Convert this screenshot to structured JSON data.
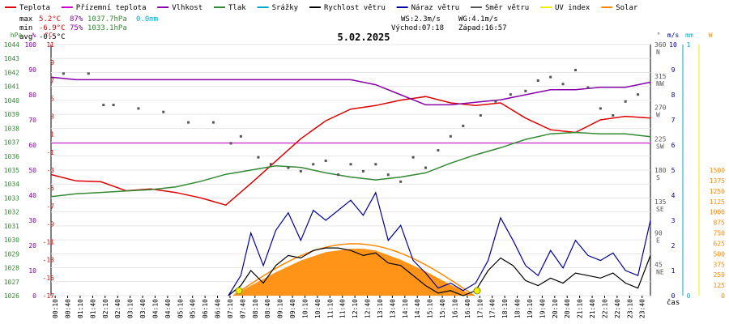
{
  "legend": [
    {
      "label": "Teplota",
      "color": "#dd0000"
    },
    {
      "label": "Přízemní teplota",
      "color": "#cc00cc"
    },
    {
      "label": "Vlhkost",
      "color": "#8800aa"
    },
    {
      "label": "Tlak",
      "color": "#338833"
    },
    {
      "label": "Srážky",
      "color": "#00aacc"
    },
    {
      "label": "Rychlost větru",
      "color": "#000000"
    },
    {
      "label": "Náraz větru",
      "color": "#000099"
    },
    {
      "label": "Směr větru",
      "color": "#555555"
    },
    {
      "label": "UV index",
      "color": "#eeee00"
    },
    {
      "label": "Solar",
      "color": "#ff8800"
    }
  ],
  "stats": {
    "max_label": "max",
    "max_temp": "5.2°C",
    "max_hum": "87%",
    "max_press": "1037.7hPa",
    "max_rain": "0.0mm",
    "min_label": "min",
    "min_temp": "-6.9°C",
    "min_hum": "75%",
    "min_press": "1033.1hPa",
    "avg_label": "avg",
    "avg_temp": "-0.5°C",
    "ws": "WS:2.3m/s",
    "wg": "WG:4.1m/s",
    "sunrise": "Východ:07:18",
    "sunset": "Západ:16:57"
  },
  "chart_data": {
    "type": "line",
    "title": "5.02.2025",
    "xlabel": "čas",
    "x_ticks": [
      "00:10",
      "00:40",
      "01:10",
      "01:40",
      "02:10",
      "02:40",
      "03:10",
      "03:40",
      "04:10",
      "04:40",
      "05:10",
      "05:40",
      "06:10",
      "06:40",
      "07:10",
      "07:40",
      "08:10",
      "08:40",
      "09:10",
      "09:40",
      "10:10",
      "10:40",
      "11:10",
      "11:40",
      "12:10",
      "12:40",
      "13:10",
      "13:40",
      "14:10",
      "14:40",
      "15:10",
      "15:40",
      "16:10",
      "16:40",
      "17:10",
      "17:40",
      "18:10",
      "18:40",
      "19:10",
      "19:40",
      "20:10",
      "20:40",
      "21:10",
      "21:40",
      "22:10",
      "22:40",
      "23:10",
      "23:40"
    ],
    "axes": {
      "pressure": {
        "unit": "hPa",
        "ylim": [
          1026,
          1044
        ],
        "ticks": [
          1044,
          1043,
          1042,
          1041,
          1040,
          1039,
          1038,
          1037,
          1036,
          1035,
          1034,
          1033,
          1032,
          1031,
          1030,
          1029,
          1028,
          1027,
          1026
        ]
      },
      "humidity": {
        "unit": "%",
        "ylim": [
          0,
          100
        ],
        "ticks": [
          100,
          90,
          80,
          70,
          60,
          50,
          40,
          30,
          20,
          10,
          0
        ]
      },
      "temperature": {
        "unit": "°C",
        "ylim": [
          -17,
          11
        ],
        "ticks": [
          11,
          9,
          7,
          5,
          3,
          1,
          -1,
          -3,
          -5,
          -7,
          -9,
          -11,
          -13,
          -15,
          -17
        ]
      },
      "direction": {
        "ticks": [
          "360\nN",
          "315\nNW",
          "270\nW",
          "225\nSW",
          "180\nS",
          "135\nSE",
          "90\nE",
          "45\nNE",
          ""
        ]
      },
      "rain": {
        "unit": "mm",
        "ticks": [
          "1",
          "0"
        ]
      },
      "wind": {
        "unit": "m/s",
        "ylim": [
          0,
          10
        ],
        "ticks": [
          "10",
          "9",
          "8",
          "7",
          "6",
          "5",
          "4",
          "3",
          "2",
          "1",
          "0"
        ]
      },
      "solar": {
        "unit": "W",
        "ticks": [
          "1500",
          "1375",
          "1250",
          "1125",
          "1000",
          "875",
          "750",
          "625",
          "500",
          "375",
          "250",
          "125",
          "0"
        ]
      }
    },
    "series": [
      {
        "name": "Teplota",
        "unit": "°C",
        "color": "#dd0000",
        "x": [
          0,
          1,
          2,
          3,
          4,
          5,
          6,
          7,
          8,
          9,
          10,
          11,
          12,
          13,
          14,
          15,
          16,
          17,
          18,
          19,
          20,
          21,
          22,
          23,
          24
        ],
        "y": [
          -3.5,
          -4.2,
          -4.3,
          -5.3,
          -5.1,
          -5.5,
          -6.1,
          -6.9,
          -4.5,
          -2,
          0.5,
          2.5,
          3.8,
          4.2,
          4.8,
          5.2,
          4.5,
          4.2,
          4.5,
          2.8,
          1.5,
          1.2,
          2.6,
          3,
          2.8
        ]
      },
      {
        "name": "Vlhkost",
        "unit": "%",
        "color": "#8800aa",
        "x": [
          0,
          1,
          2,
          3,
          4,
          5,
          6,
          7,
          8,
          9,
          10,
          11,
          12,
          13,
          14,
          15,
          16,
          17,
          18,
          19,
          20,
          21,
          22,
          23,
          24
        ],
        "y": [
          87,
          86,
          86,
          86,
          86,
          86,
          86,
          86,
          86,
          86,
          86,
          86,
          86,
          84,
          80,
          76,
          76,
          77,
          78,
          80,
          82,
          82,
          83,
          83,
          85
        ]
      },
      {
        "name": "Tlak",
        "unit": "hPa",
        "color": "#338833",
        "x": [
          0,
          1,
          2,
          3,
          4,
          5,
          6,
          7,
          8,
          9,
          10,
          11,
          12,
          13,
          14,
          15,
          16,
          17,
          18,
          19,
          20,
          21,
          22,
          23,
          24
        ],
        "y": [
          1033.1,
          1033.3,
          1033.4,
          1033.5,
          1033.6,
          1033.8,
          1034.2,
          1034.7,
          1035,
          1035.3,
          1035.2,
          1034.8,
          1034.5,
          1034.3,
          1034.5,
          1034.8,
          1035.5,
          1036.1,
          1036.6,
          1037.2,
          1037.6,
          1037.7,
          1037.6,
          1037.6,
          1037.4
        ]
      },
      {
        "name": "Směr větru",
        "unit": "°",
        "color": "#555555",
        "style": "dots",
        "x": [
          0.5,
          1.5,
          2.1,
          2.5,
          3.5,
          4.5,
          5.5,
          6.5,
          7.2,
          7.6,
          8.3,
          8.8,
          9.5,
          10,
          10.5,
          11,
          11.5,
          12,
          12.5,
          13,
          13.5,
          14,
          14.5,
          15,
          15.5,
          16,
          16.5,
          17.2,
          17.8,
          18.4,
          19,
          19.5,
          20,
          20.5,
          21,
          21.5,
          22,
          22.5,
          23,
          23.5
        ],
        "y": [
          330,
          330,
          285,
          285,
          280,
          275,
          260,
          260,
          230,
          240,
          210,
          200,
          195,
          190,
          200,
          205,
          185,
          200,
          190,
          200,
          185,
          175,
          210,
          195,
          220,
          240,
          255,
          270,
          290,
          300,
          305,
          320,
          325,
          315,
          335,
          310,
          280,
          270,
          290,
          300
        ]
      },
      {
        "name": "Rychlost větru",
        "unit": "m/s",
        "color": "#000000",
        "x": [
          7.1,
          7.6,
          8,
          8.5,
          9,
          9.5,
          10,
          10.5,
          11,
          11.5,
          12,
          12.5,
          13,
          13.5,
          14,
          14.5,
          15,
          15.5,
          16,
          16.5,
          17,
          17.5,
          18,
          18.5,
          19,
          19.5,
          20,
          20.5,
          21,
          21.5,
          22,
          22.5,
          23,
          23.5,
          24
        ],
        "y": [
          0,
          0.4,
          1,
          0.5,
          1.2,
          1.6,
          1.5,
          1.8,
          1.9,
          1.9,
          1.8,
          1.6,
          1.7,
          1.3,
          1.2,
          0.8,
          0.4,
          0.1,
          0.2,
          0,
          0.2,
          1,
          1.5,
          1.2,
          0.6,
          0.4,
          0.7,
          0.5,
          0.9,
          0.8,
          0.7,
          0.9,
          0.5,
          0.3,
          1.6
        ]
      },
      {
        "name": "Náraz větru",
        "unit": "m/s",
        "color": "#000099",
        "x": [
          7.1,
          7.6,
          8,
          8.5,
          9,
          9.5,
          10,
          10.5,
          11,
          11.5,
          12,
          12.5,
          13,
          13.5,
          14,
          14.5,
          15,
          15.5,
          16,
          16.5,
          17,
          17.5,
          18,
          18.5,
          19,
          19.5,
          20,
          20.5,
          21,
          21.5,
          22,
          22.5,
          23,
          23.5,
          24
        ],
        "y": [
          0,
          0.8,
          2.5,
          1.2,
          2.6,
          3.3,
          2.2,
          3.4,
          3,
          3.4,
          3.8,
          3.2,
          4.1,
          2.2,
          2.8,
          1.4,
          0.9,
          0.3,
          0.5,
          0.2,
          0.5,
          1.4,
          3.1,
          2.2,
          1.2,
          0.8,
          1.8,
          1.1,
          2.2,
          1.6,
          1.4,
          1.7,
          1.0,
          0.8,
          3.0
        ]
      },
      {
        "name": "Solar",
        "unit": "W",
        "color": "#ff8800",
        "x": [
          7.3,
          8,
          9,
          10,
          11,
          12,
          12.5,
          13,
          14,
          15,
          16,
          16.95
        ],
        "y": [
          0,
          120,
          280,
          420,
          520,
          560,
          560,
          540,
          430,
          290,
          130,
          0
        ]
      }
    ],
    "legend_position": "top"
  }
}
